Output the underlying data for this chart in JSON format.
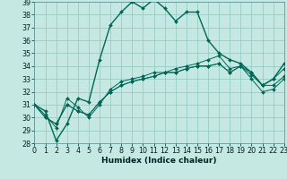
{
  "xlabel": "Humidex (Indice chaleur)",
  "xlim_min": 0,
  "xlim_max": 23,
  "ylim_min": 28,
  "ylim_max": 39,
  "yticks": [
    28,
    29,
    30,
    31,
    32,
    33,
    34,
    35,
    36,
    37,
    38,
    39
  ],
  "xticks": [
    0,
    1,
    2,
    3,
    4,
    5,
    6,
    7,
    8,
    9,
    10,
    11,
    12,
    13,
    14,
    15,
    16,
    17,
    18,
    19,
    20,
    21,
    22,
    23
  ],
  "bg_color": "#c5e8e3",
  "grid_color": "#8dc8c0",
  "line_color": "#006655",
  "line1": [
    31.0,
    30.5,
    28.2,
    29.5,
    31.5,
    31.2,
    34.5,
    37.2,
    38.2,
    39.0,
    38.5,
    39.2,
    38.5,
    37.5,
    38.2,
    38.2,
    36.0,
    35.0,
    34.5,
    34.2,
    33.5,
    32.5,
    33.0,
    34.2
  ],
  "line2": [
    31.0,
    30.2,
    29.2,
    31.5,
    30.8,
    30.0,
    31.0,
    32.2,
    32.8,
    33.0,
    33.2,
    33.5,
    33.5,
    33.8,
    34.0,
    34.2,
    34.5,
    34.8,
    33.8,
    34.0,
    33.5,
    32.5,
    33.0,
    33.8
  ],
  "line3": [
    31.0,
    30.0,
    29.5,
    31.0,
    30.5,
    30.2,
    31.2,
    32.0,
    32.5,
    32.8,
    33.0,
    33.2,
    33.5,
    33.5,
    33.8,
    34.0,
    34.0,
    34.2,
    33.5,
    34.0,
    33.3,
    32.5,
    32.5,
    33.2
  ],
  "line4": [
    31.0,
    30.0,
    29.5,
    31.0,
    30.5,
    30.2,
    31.2,
    32.0,
    32.5,
    32.8,
    33.0,
    33.2,
    33.5,
    33.5,
    33.8,
    34.0,
    34.0,
    34.2,
    33.5,
    34.0,
    33.0,
    32.0,
    32.2,
    33.0
  ],
  "xlabel_fontsize": 6.5,
  "tick_fontsize": 5.8,
  "marker_size": 2.0
}
